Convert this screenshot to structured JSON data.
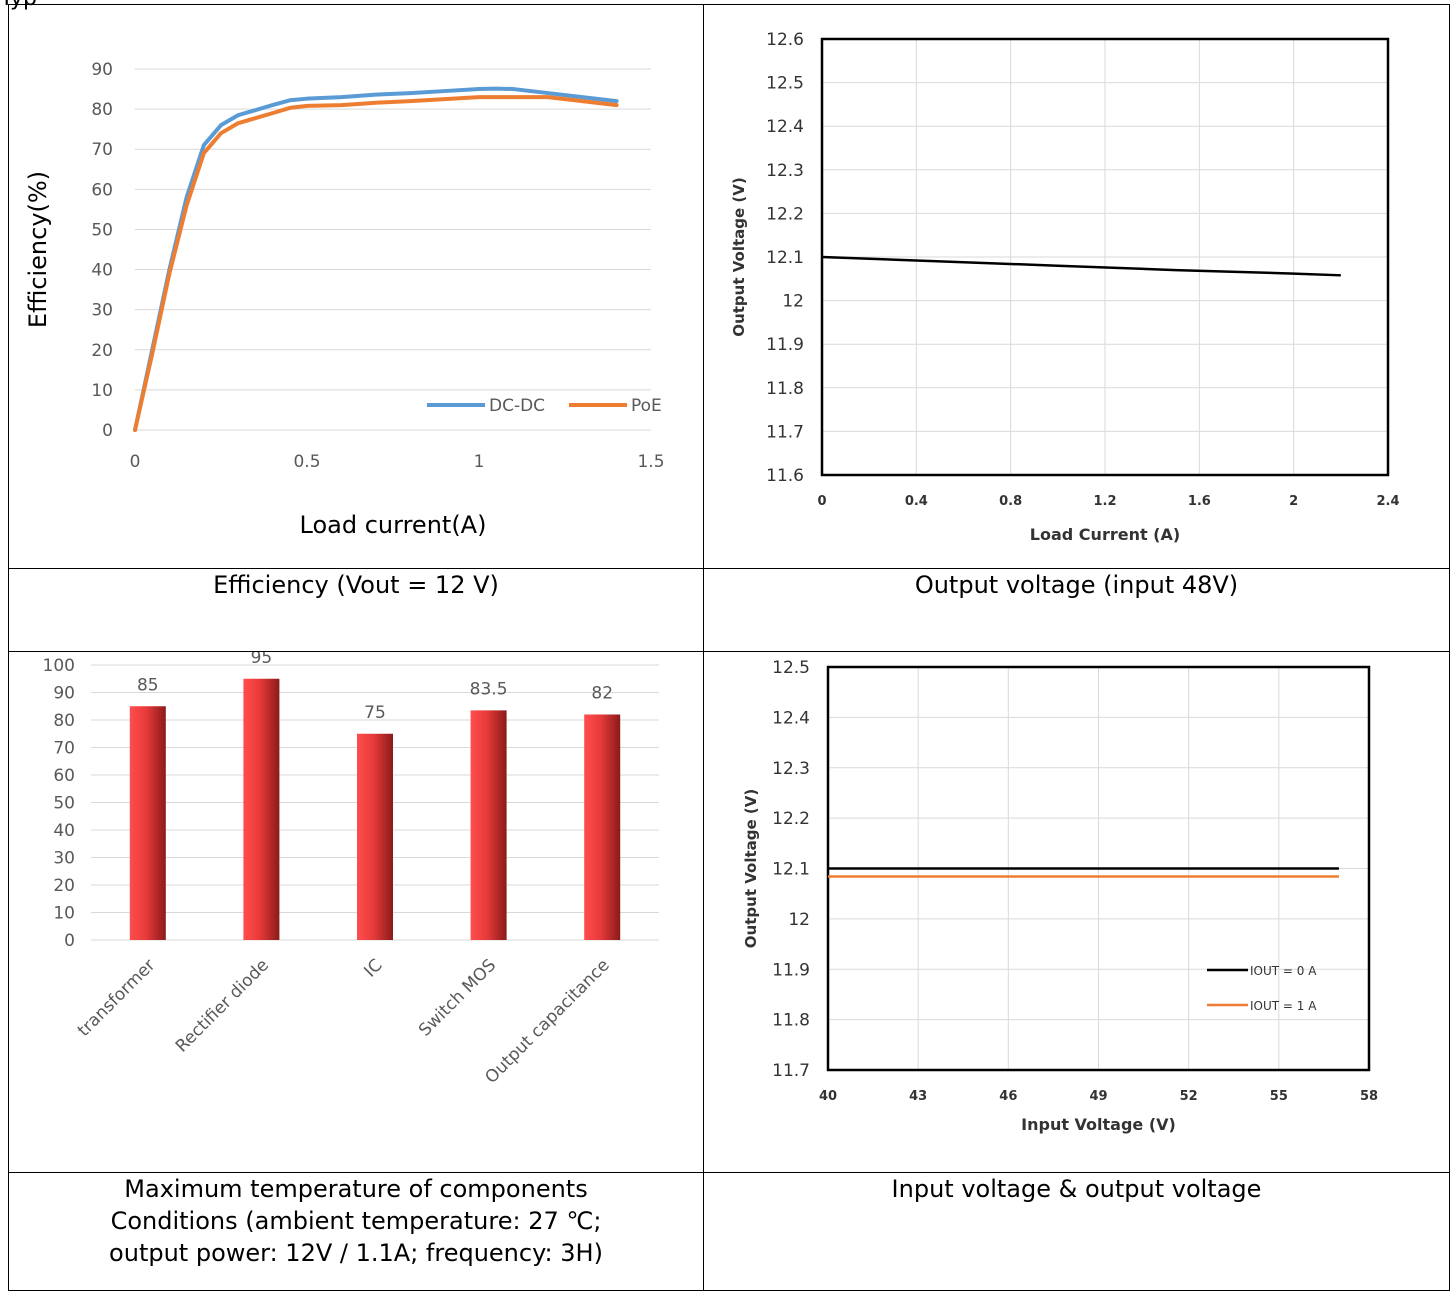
{
  "page": {
    "top_text": "Typ"
  },
  "captions": {
    "c1": "Efficiency (Vout = 12 V)",
    "c2": "Output voltage (input 48V)",
    "c3": [
      "Maximum temperature of components",
      "Conditions (ambient temperature: 27 ℃;",
      "output power: 12V / 1.1A; frequency: 3H)"
    ],
    "c4": "Input voltage & output voltage"
  },
  "chart_data": [
    {
      "type": "line",
      "title": "",
      "xlabel": "Load current(A)",
      "ylabel": "Efficiency(%)",
      "xlim": [
        0,
        1.5
      ],
      "ylim": [
        0,
        90
      ],
      "x_ticks": [
        "0",
        "0.5",
        "1",
        "1.5"
      ],
      "y_ticks": [
        "0",
        "10",
        "20",
        "30",
        "40",
        "50",
        "60",
        "70",
        "80",
        "90"
      ],
      "grid": "horizontal",
      "legend": "bottom-right",
      "series": [
        {
          "name": "DC-DC",
          "color": "#5b9bd5",
          "x": [
            0,
            0.05,
            0.1,
            0.15,
            0.2,
            0.25,
            0.3,
            0.4,
            0.45,
            0.5,
            0.6,
            0.7,
            0.8,
            0.9,
            1.0,
            1.05,
            1.1,
            1.2,
            1.3,
            1.4
          ],
          "y": [
            0,
            20,
            40,
            58,
            71,
            76,
            78.5,
            81,
            82.2,
            82.6,
            83,
            83.6,
            84,
            84.5,
            85,
            85.1,
            85,
            84,
            83,
            82
          ]
        },
        {
          "name": "PoE",
          "color": "#ed7d31",
          "x": [
            0,
            0.05,
            0.1,
            0.15,
            0.2,
            0.25,
            0.3,
            0.4,
            0.45,
            0.5,
            0.6,
            0.7,
            0.8,
            0.9,
            1.0,
            1.05,
            1.1,
            1.2,
            1.3,
            1.4
          ],
          "y": [
            0,
            19,
            39,
            56,
            69,
            74,
            76.5,
            79,
            80.3,
            80.8,
            81,
            81.6,
            82,
            82.5,
            83,
            83,
            83,
            83,
            82,
            81
          ]
        }
      ]
    },
    {
      "type": "line",
      "title": "",
      "xlabel": "Load Current (A)",
      "ylabel": "Output Voltage (V)",
      "xlim": [
        0,
        2.4
      ],
      "ylim": [
        11.6,
        12.6
      ],
      "x_ticks": [
        "0",
        "0.4",
        "0.8",
        "1.2",
        "1.6",
        "2",
        "2.4"
      ],
      "y_ticks": [
        "11.6",
        "11.7",
        "11.8",
        "11.9",
        "12",
        "12.1",
        "12.2",
        "12.3",
        "12.4",
        "12.5",
        "12.6"
      ],
      "grid": "both",
      "series": [
        {
          "name": "",
          "color": "#000000",
          "x": [
            0,
            0.5,
            1.0,
            1.5,
            2.0,
            2.2
          ],
          "y": [
            12.1,
            12.09,
            12.08,
            12.07,
            12.062,
            12.058
          ]
        }
      ]
    },
    {
      "type": "bar",
      "title": "",
      "xlabel": "",
      "ylabel": "",
      "ylim": [
        0,
        100
      ],
      "y_ticks": [
        "0",
        "10",
        "20",
        "30",
        "40",
        "50",
        "60",
        "70",
        "80",
        "90",
        "100"
      ],
      "grid": "horizontal",
      "categories": [
        "transformer",
        "Rectifier diode",
        "IC",
        "Switch MOS",
        "Output capacitance"
      ],
      "values": [
        85,
        95,
        75,
        83.5,
        82
      ],
      "value_labels": [
        "85",
        "95",
        "75",
        "83.5",
        "82"
      ],
      "bar_color_light": "#ff4d4d",
      "bar_color_dark": "#8b1a1a"
    },
    {
      "type": "line",
      "title": "",
      "xlabel": "Input Voltage (V)",
      "ylabel": "Output Voltage (V)",
      "xlim": [
        40,
        58
      ],
      "ylim": [
        11.7,
        12.5
      ],
      "x_ticks": [
        "40",
        "43",
        "46",
        "49",
        "52",
        "55",
        "58"
      ],
      "y_ticks": [
        "11.7",
        "11.8",
        "11.9",
        "12",
        "12.1",
        "12.2",
        "12.3",
        "12.4",
        "12.5"
      ],
      "grid": "both",
      "legend": "bottom-right",
      "series": [
        {
          "name": "IOUT = 0 A",
          "color": "#000000",
          "x": [
            40,
            57
          ],
          "y": [
            12.1,
            12.1
          ]
        },
        {
          "name": "IOUT = 1 A",
          "color": "#ed7d31",
          "x": [
            40,
            57
          ],
          "y": [
            12.084,
            12.084
          ]
        }
      ]
    }
  ]
}
